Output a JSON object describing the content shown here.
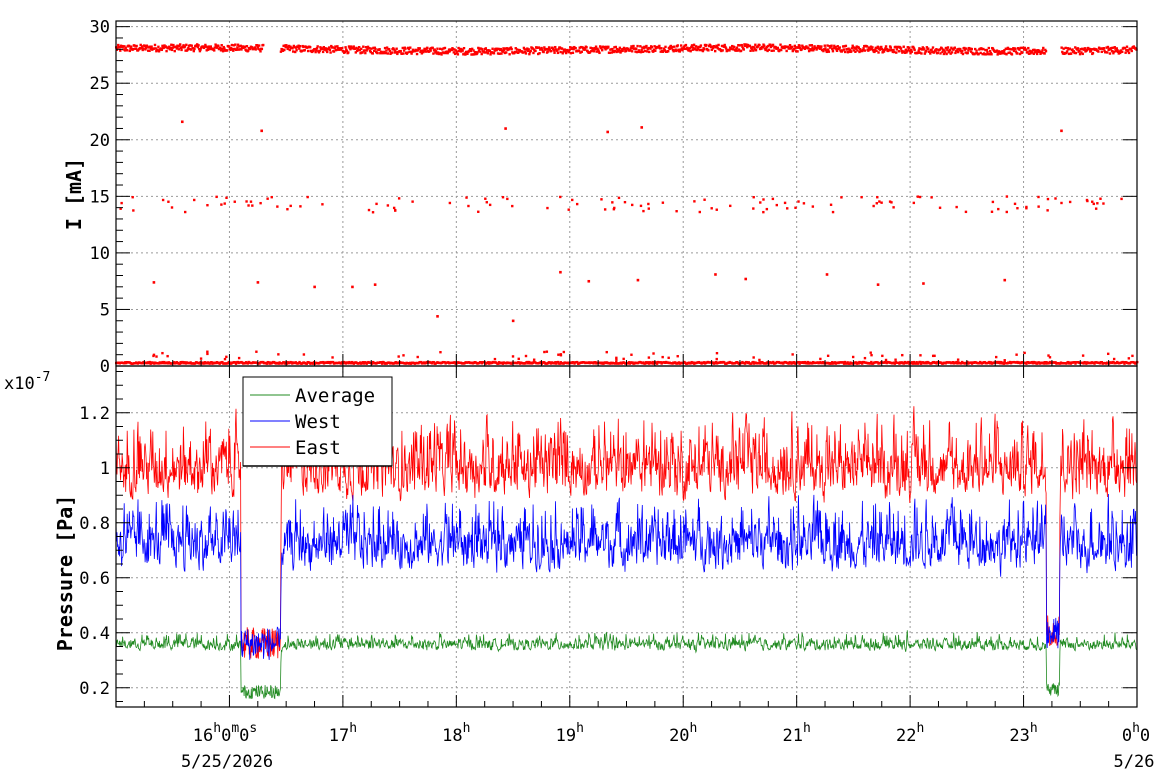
{
  "chart_data": [
    {
      "type": "scatter",
      "ylabel": "I [mA]",
      "ylim": [
        0,
        30.5
      ],
      "y_ticks": [
        "0",
        "5",
        "10",
        "15",
        "20",
        "25",
        "30"
      ],
      "grid": true,
      "series": [
        {
          "color": "#ff0000",
          "levels_mA": [
            28,
            14.3,
            0.2
          ],
          "sparse_points": [
            {
              "t": "15:20",
              "y": 7.4
            },
            {
              "t": "15:35",
              "y": 21.6
            },
            {
              "t": "16:15",
              "y": 7.4
            },
            {
              "t": "16:17",
              "y": 20.8
            },
            {
              "t": "16:45",
              "y": 7.0
            },
            {
              "t": "17:05",
              "y": 7.0
            },
            {
              "t": "17:17",
              "y": 7.2
            },
            {
              "t": "17:50",
              "y": 4.4
            },
            {
              "t": "18:26",
              "y": 21.0
            },
            {
              "t": "18:30",
              "y": 4.0
            },
            {
              "t": "18:55",
              "y": 8.3
            },
            {
              "t": "19:10",
              "y": 7.5
            },
            {
              "t": "19:20",
              "y": 20.7
            },
            {
              "t": "19:36",
              "y": 7.6
            },
            {
              "t": "19:38",
              "y": 21.1
            },
            {
              "t": "20:17",
              "y": 8.1
            },
            {
              "t": "20:33",
              "y": 7.7
            },
            {
              "t": "21:16",
              "y": 8.1
            },
            {
              "t": "21:43",
              "y": 7.2
            },
            {
              "t": "22:07",
              "y": 7.3
            },
            {
              "t": "22:50",
              "y": 7.6
            },
            {
              "t": "23:20",
              "y": 20.8
            }
          ]
        }
      ]
    },
    {
      "type": "line",
      "ylabel": "Pressure [Pa]",
      "y_exponent": "x10",
      "y_exponent_power": "-7",
      "ylim": [
        0.13,
        1.37
      ],
      "y_ticks": [
        "0.2",
        "0.4",
        "0.6",
        "0.8",
        "1",
        "1.2"
      ],
      "grid": true,
      "legend_position": "top-left",
      "series": [
        {
          "name": "Average",
          "color": "#228b22",
          "typical": [
            0.3,
            0.42
          ],
          "dips": [
            [
              16.1,
              16.45,
              0.16
            ],
            [
              23.2,
              23.32,
              0.17
            ]
          ]
        },
        {
          "name": "West",
          "color": "#0000ff",
          "typical": [
            0.5,
            0.95
          ],
          "dips": [
            [
              16.1,
              16.45,
              0.3
            ],
            [
              23.2,
              23.32,
              0.34
            ]
          ]
        },
        {
          "name": "East",
          "color": "#ff0000",
          "typical": [
            0.75,
            1.25
          ],
          "dips": [
            [
              16.1,
              16.45,
              0.3
            ],
            [
              23.2,
              23.32,
              0.35
            ]
          ]
        }
      ]
    }
  ],
  "x_axis": {
    "range_hours": [
      15.0,
      24.0
    ],
    "first_label": {
      "hour": "16",
      "h": "h",
      "m_val": "0",
      "m": "m",
      "s_val": "0",
      "s": "s",
      "date": "5/25/2026"
    },
    "labels": [
      {
        "hour": "17",
        "h": "h"
      },
      {
        "hour": "18",
        "h": "h"
      },
      {
        "hour": "19",
        "h": "h"
      },
      {
        "hour": "20",
        "h": "h"
      },
      {
        "hour": "21",
        "h": "h"
      },
      {
        "hour": "22",
        "h": "h"
      },
      {
        "hour": "23",
        "h": "h"
      }
    ],
    "last_label": {
      "hour": "0",
      "h": "h",
      "tail": "0",
      "date": "5/26"
    }
  }
}
